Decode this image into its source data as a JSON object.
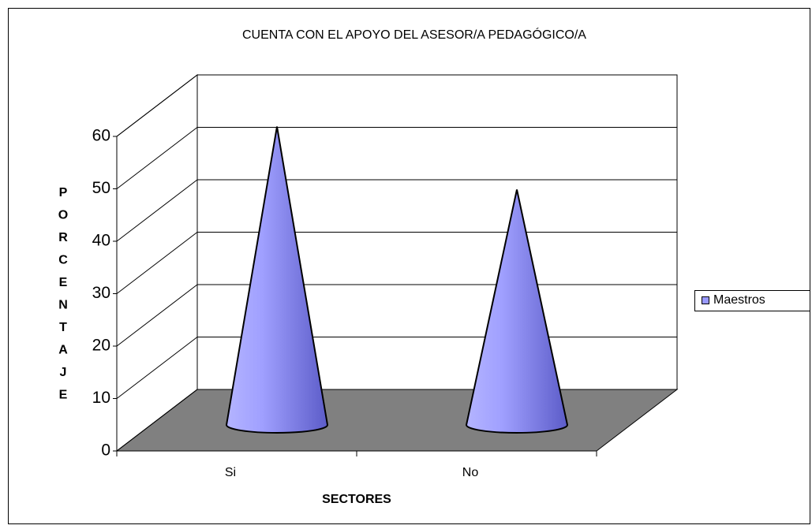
{
  "chart_data": {
    "type": "cone3d",
    "title": "CUENTA CON EL APOYO DEL ASESOR/A PEDAGÓGICO/A",
    "x_label": "SECTORES",
    "y_label": "PORCENTAJE",
    "categories": [
      "Si",
      "No"
    ],
    "series": [
      {
        "name": "Maestros",
        "color": "#9999ff",
        "values": [
          56,
          44
        ]
      }
    ],
    "ylim": [
      0,
      60
    ],
    "yticks": [
      0,
      10,
      20,
      30,
      40,
      50,
      60
    ],
    "grid": true,
    "legend": "right"
  }
}
